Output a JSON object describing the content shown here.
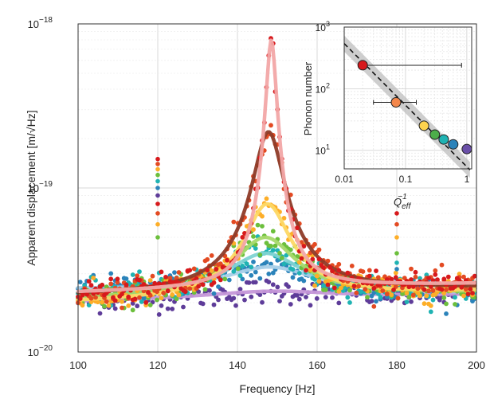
{
  "chart_data": [
    {
      "type": "scatter",
      "title": "",
      "xlabel": "Frequency [Hz]",
      "ylabel": "Apparent displacement [m/√Hz]",
      "xlim": [
        100,
        200
      ],
      "ylim": [
        1e-20,
        1e-18
      ],
      "yscale": "log",
      "grid": true,
      "xticks": [
        "100",
        "120",
        "140",
        "160",
        "180",
        "200"
      ],
      "yticks": [
        {
          "base": "10",
          "exp": "−18",
          "value": 1e-18
        },
        {
          "base": "10",
          "exp": "−19",
          "value": 1e-19
        },
        {
          "base": "10",
          "exp": "−20",
          "value": 1e-20
        }
      ],
      "series": [
        {
          "color": "#d7191c",
          "fit_color": "#f2a6a6",
          "peak_hz": 148.5,
          "peak_value": 8e-19,
          "width_hz": 2.3,
          "background": 2.6e-20,
          "ends": [
            2.3e-20,
            2.6e-20
          ]
        },
        {
          "color": "#e34a22",
          "fit_color": "#8e3b28",
          "peak_hz": 147.8,
          "peak_value": 2.2e-19,
          "width_hz": 7.0,
          "background": 2.4e-20,
          "ends": [
            2.2e-20,
            2.45e-20
          ]
        },
        {
          "color": "#fdae28",
          "fit_color": "#fdd865",
          "peak_hz": 147.5,
          "peak_value": 8e-20,
          "width_hz": 11.0,
          "background": 2.1e-20,
          "ends": [
            2e-20,
            2.35e-20
          ]
        },
        {
          "color": "#6cbf3c",
          "fit_color": "#a6d96a",
          "peak_hz": 147.0,
          "peak_value": 5e-20,
          "width_hz": 16.0,
          "background": 2e-20,
          "ends": [
            2.1e-20,
            2.3e-20
          ]
        },
        {
          "color": "#1fb3b3",
          "fit_color": "#7fd3d3",
          "peak_hz": 147.0,
          "peak_value": 4e-20,
          "width_hz": 20.0,
          "background": 2e-20,
          "ends": [
            2.25e-20,
            2.3e-20
          ]
        },
        {
          "color": "#2b83ba",
          "fit_color": "#a6cfe8",
          "peak_hz": 148.0,
          "peak_value": 3.3e-20,
          "width_hz": 26.0,
          "background": 2e-20,
          "ends": [
            2.4e-20,
            2.25e-20
          ]
        },
        {
          "color": "#5e3c99",
          "fit_color": "#c597d8",
          "peak_hz": 150.0,
          "peak_value": 2.35e-20,
          "width_hz": 40.0,
          "background": 1.9e-20,
          "ends": [
            2e-20,
            2.25e-20
          ]
        }
      ],
      "spurs": [
        {
          "frequency_hz": 120,
          "values": [
            1.5e-19,
            1.4e-19,
            1.3e-19,
            1.2e-19,
            1.1e-19,
            1e-19,
            9e-20,
            8e-20,
            7e-20,
            6e-20,
            5e-20
          ]
        },
        {
          "frequency_hz": 180,
          "values": [
            7e-20,
            6e-20,
            5e-20,
            4e-20,
            3.5e-20,
            3.2e-20
          ]
        }
      ]
    },
    {
      "type": "scatter",
      "title": "",
      "xlabel": "Q_eff^-1",
      "xlabel_main": "Q",
      "xlabel_sub": "eff",
      "xlabel_sup": "−1",
      "ylabel": "Phonon number",
      "xscale": "log",
      "yscale": "log",
      "xlim": [
        0.01,
        1.2
      ],
      "ylim": [
        5,
        1000
      ],
      "xticks": [
        "0.01",
        "0.1",
        "1"
      ],
      "yticks": [
        {
          "base": "10",
          "exp": "3",
          "value": 1000
        },
        {
          "base": "10",
          "exp": "2",
          "value": 100
        },
        {
          "base": "10",
          "exp": "1",
          "value": 10
        }
      ],
      "points": [
        {
          "x": 0.02,
          "y": 240,
          "xerr": [
            0.0,
            0.8
          ],
          "color": "#d7191c"
        },
        {
          "x": 0.07,
          "y": 60,
          "xerr": [
            0.04,
            0.08
          ],
          "color": "#f4874b"
        },
        {
          "x": 0.2,
          "y": 25,
          "color": "#fdd34e"
        },
        {
          "x": 0.3,
          "y": 18,
          "color": "#4dae4a"
        },
        {
          "x": 0.42,
          "y": 15,
          "color": "#1fb3b3"
        },
        {
          "x": 0.6,
          "y": 12.5,
          "color": "#2b83ba"
        },
        {
          "x": 1.0,
          "y": 10.5,
          "color": "#6a4fa8"
        }
      ],
      "fit": {
        "style": "dashed",
        "color": "#111111",
        "band_color": "#bdbdbd",
        "coefficient": 5.4,
        "exponent": -1
      }
    }
  ]
}
